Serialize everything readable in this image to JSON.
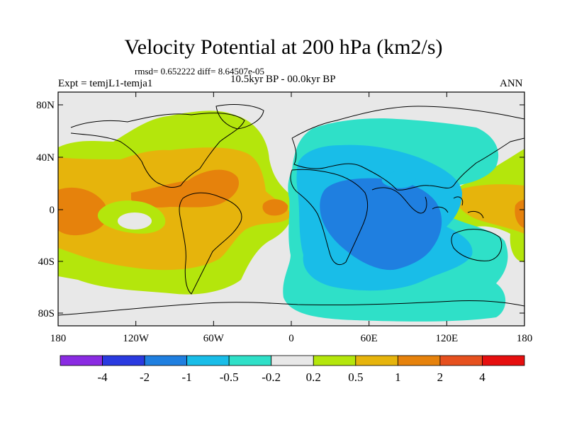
{
  "title": "Velocity Potential at 200 hPa (km2/s)",
  "rmsd_line": "rmsd= 0.652222 diff= 8.64507e-05",
  "expt_label": "Expt = temjL1-temja1",
  "period_label": "10.5kyr BP - 00.0kyr BP",
  "season_label": "ANN",
  "lat_labels": [
    "80N",
    "40N",
    "0",
    "40S",
    "80S"
  ],
  "lon_labels": [
    "180",
    "120W",
    "60W",
    "0",
    "60E",
    "120E",
    "180"
  ],
  "colorbar": {
    "colors": [
      "#8a2be2",
      "#2a3ae0",
      "#1f7fe0",
      "#19bde8",
      "#2fe0c8",
      "#e8e8e8",
      "#b4e60c",
      "#e6b40c",
      "#e6820c",
      "#e6501e",
      "#e60f0f"
    ],
    "labels": [
      "-4",
      "-2",
      "-1",
      "-0.5",
      "-0.2",
      "0.2",
      "0.5",
      "1",
      "2",
      "4"
    ]
  },
  "map_colors": {
    "background": "#e8e8e8",
    "light_green": "#b4e60c",
    "gold": "#e6b40c",
    "orange": "#e6820c",
    "teal": "#2fe0c8",
    "cyan": "#19bde8",
    "blue": "#1f7fe0"
  }
}
